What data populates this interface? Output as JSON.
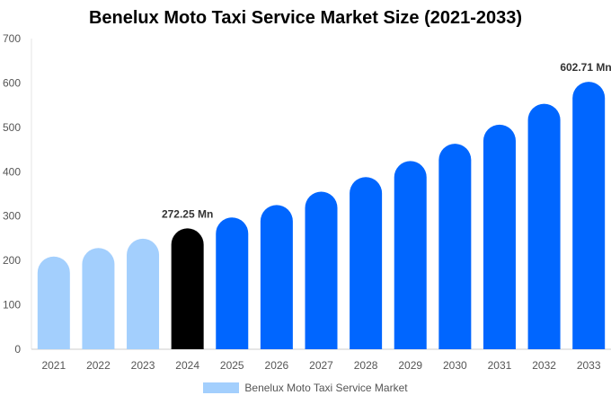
{
  "chart_data": {
    "type": "bar",
    "title": "Benelux Moto Taxi Service Market Size (2021-2033)",
    "categories": [
      "2021",
      "2022",
      "2023",
      "2024",
      "2025",
      "2026",
      "2027",
      "2028",
      "2029",
      "2030",
      "2031",
      "2032",
      "2033"
    ],
    "series": [
      {
        "name": "Benelux Moto Taxi Service Market",
        "values": [
          209,
          228,
          249,
          272.25,
          297,
          325,
          355,
          388,
          424,
          463,
          506,
          553,
          602.71
        ]
      }
    ],
    "data_labels": {
      "2024": "272.25 Mn",
      "2033": "602.71 Mn"
    },
    "ylim": [
      0,
      700
    ],
    "yticks": [
      0,
      100,
      200,
      300,
      400,
      500,
      600,
      700
    ],
    "grid": false,
    "legend_position": "bottom",
    "colors": {
      "historical": "#a3cffd",
      "current": "#000000",
      "forecast": "#0066ff"
    }
  }
}
